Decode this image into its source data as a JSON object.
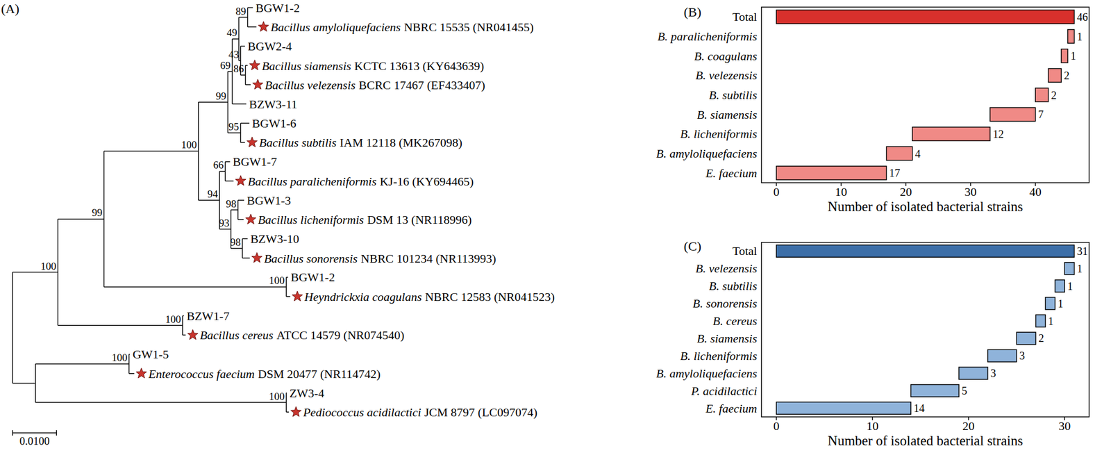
{
  "tree": {
    "title": "(A)",
    "scale_bar": {
      "value": 0.01,
      "label": "0.0100"
    },
    "root": {
      "depth": 0,
      "children": [
        {
          "depth": 0.0103,
          "support": 100,
          "children": [
            {
              "depth": 0.0208,
              "support": 99,
              "children": [
                {
                  "depth": 0.0423,
                  "support": 100,
                  "children": [
                    {
                      "depth": 0.049,
                      "support": 99,
                      "children": [
                        {
                          "depth": 0.05,
                          "support": 69,
                          "children": [
                            {
                              "depth": 0.0515,
                              "support": 49,
                              "children": [
                                {
                                  "depth": 0.0535,
                                  "support": 89,
                                  "children": [
                                    {
                                      "depth": 0.0547,
                                      "label": "BGW1-2"
                                    },
                                    {
                                      "depth": 0.0555,
                                      "species": "Bacillus amyloliquefaciens",
                                      "strain": "NBRC 15535 (NR041455)"
                                    }
                                  ]
                                },
                                {
                                  "depth": 0.0519,
                                  "support": 43,
                                  "children": [
                                    {
                                      "depth": 0.0529,
                                      "label": "BGW2-4"
                                    },
                                    {
                                      "depth": 0.053,
                                      "support": 86,
                                      "children": [
                                        {
                                          "depth": 0.0535,
                                          "species": "Bacillus siamensis",
                                          "strain": "KCTC 13613 (KY643639)"
                                        },
                                        {
                                          "depth": 0.0542,
                                          "species": "Bacillus velezensis",
                                          "strain": "BCRC 17467 (EF433407)"
                                        }
                                      ]
                                    }
                                  ]
                                }
                              ]
                            },
                            {
                              "depth": 0.0532,
                              "label": "BZW3-11"
                            }
                          ]
                        },
                        {
                          "depth": 0.0519,
                          "support": 95,
                          "children": [
                            {
                              "depth": 0.0539,
                              "label": "BGW1-6"
                            },
                            {
                              "depth": 0.0529,
                              "species": "Bacillus subtilis",
                              "strain": "IAM 12118 (MK267098)"
                            }
                          ]
                        }
                      ]
                    },
                    {
                      "depth": 0.0471,
                      "support": 94,
                      "children": [
                        {
                          "depth": 0.0484,
                          "support": 66,
                          "children": [
                            {
                              "depth": 0.0495,
                              "label": "BGW1-7"
                            },
                            {
                              "depth": 0.0503,
                              "species": "Bacillus paralicheniformis",
                              "strain": "KJ-16 (KY694465)"
                            }
                          ]
                        },
                        {
                          "depth": 0.0497,
                          "support": 93,
                          "children": [
                            {
                              "depth": 0.0513,
                              "support": 98,
                              "children": [
                                {
                                  "depth": 0.0527,
                                  "label": "BGW1-3"
                                },
                                {
                                  "depth": 0.0526,
                                  "species": "Bacillus licheniformis",
                                  "strain": "DSM 13 (NR118996)"
                                }
                              ]
                            },
                            {
                              "depth": 0.0523,
                              "support": 98,
                              "children": [
                                {
                                  "depth": 0.0535,
                                  "label": "BZW3-10"
                                },
                                {
                                  "depth": 0.054,
                                  "species": "Bacillus sonorensis",
                                  "strain": "NBRC 101234 (NR113993)"
                                }
                              ]
                            }
                          ]
                        }
                      ]
                    }
                  ]
                },
                {
                  "depth": 0.0623,
                  "support": 100,
                  "children": [
                    {
                      "depth": 0.0627,
                      "label": "BGW1-2"
                    },
                    {
                      "depth": 0.0632,
                      "species": "Heyndrickxia coagulans",
                      "strain": "NBRC 12583 (NR041523)"
                    }
                  ]
                }
              ]
            },
            {
              "depth": 0.0387,
              "support": 100,
              "children": [
                {
                  "depth": 0.039,
                  "label": "BZW1-7"
                },
                {
                  "depth": 0.0394,
                  "species": "Bacillus cereus",
                  "strain": "ATCC 14579 (NR074540)"
                }
              ]
            }
          ]
        },
        {
          "depth": 0.0052,
          "children": [
            {
              "depth": 0.0265,
              "support": 100,
              "children": [
                {
                  "depth": 0.0267,
                  "label": "GW1-5"
                },
                {
                  "depth": 0.0277,
                  "species": "Enterococcus faecium",
                  "strain": "DSM 20477 (NR114742)"
                }
              ]
            },
            {
              "depth": 0.0623,
              "support": 100,
              "children": [
                {
                  "depth": 0.0624,
                  "label": "ZW3-4"
                },
                {
                  "depth": 0.0629,
                  "species": "Pediococcus acidilactici",
                  "strain": "JCM 8797 (LC097074)"
                }
              ]
            }
          ]
        }
      ]
    }
  },
  "chart_data": [
    {
      "type": "waterfall",
      "title": "(B)",
      "orientation": "horizontal",
      "categories": [
        "E. faecium",
        "B. amyloliquefaciens",
        "B. licheniformis",
        "B. siamensis",
        "B. subtilis",
        "B. velezensis",
        "B. coagulans",
        "B. paralicheniformis",
        "Total"
      ],
      "values": [
        17,
        4,
        12,
        7,
        2,
        2,
        1,
        1,
        46
      ],
      "colors": [
        "#f08a86",
        "#f08a86",
        "#f08a86",
        "#f08a86",
        "#f08a86",
        "#f08a86",
        "#f08a86",
        "#f08a86",
        "#d8302c"
      ],
      "xlabel": "Number of isolated bacterial strains",
      "xlim": [
        -2.3,
        48.3
      ],
      "xticks": [
        0,
        10,
        20,
        30,
        40
      ],
      "data_labels": true
    },
    {
      "type": "waterfall",
      "title": "(C)",
      "orientation": "horizontal",
      "categories": [
        "E. faecium",
        "P. acidilactici",
        "B. amyloliquefaciens",
        "B. licheniformis",
        "B. siamensis",
        "B. cereus",
        "B. sonorensis",
        "B. subtilis",
        "B. velezensis",
        "Total"
      ],
      "values": [
        14,
        5,
        3,
        3,
        2,
        1,
        1,
        1,
        1,
        31
      ],
      "colors": [
        "#8fb3da",
        "#8fb3da",
        "#8fb3da",
        "#8fb3da",
        "#8fb3da",
        "#8fb3da",
        "#8fb3da",
        "#8fb3da",
        "#8fb3da",
        "#3d6fa8"
      ],
      "xlabel": "Number of isolated bacterial strains",
      "xlim": [
        -1.55,
        32.55
      ],
      "xticks": [
        0,
        10,
        20,
        30
      ],
      "data_labels": true
    }
  ]
}
